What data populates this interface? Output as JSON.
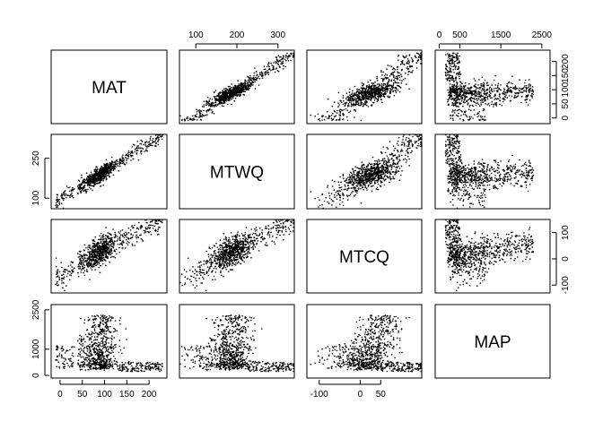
{
  "chart_data": {
    "type": "scatter",
    "title": "",
    "variables": [
      "MAT",
      "MTWQ",
      "MTCQ",
      "MAP"
    ],
    "ranges": {
      "MAT": [
        -20,
        240
      ],
      "MTWQ": [
        60,
        340
      ],
      "MTCQ": [
        -130,
        150
      ],
      "MAP": [
        -100,
        2700
      ]
    },
    "axes": {
      "top": [
        {
          "column": "MTWQ",
          "ticks": [
            100,
            200,
            300
          ],
          "labels": [
            "100",
            "200",
            "300"
          ]
        },
        {
          "column": "MAP",
          "ticks": [
            0,
            500,
            1500,
            2500
          ],
          "labels": [
            "0",
            "500",
            "1500",
            "2500"
          ]
        }
      ],
      "right": [
        {
          "row": "MAT",
          "ticks": [
            0,
            50,
            100,
            150,
            200
          ],
          "labels": [
            "0",
            "50",
            "100",
            "150",
            "200"
          ]
        },
        {
          "row": "MTCQ",
          "ticks": [
            -100,
            0,
            100
          ],
          "labels": [
            "-100",
            "0",
            "100"
          ]
        }
      ],
      "left": [
        {
          "row": "MTWQ",
          "ticks": [
            100,
            250
          ],
          "labels": [
            "100",
            "250"
          ]
        },
        {
          "row": "MAP",
          "ticks": [
            0,
            1000,
            2500
          ],
          "labels": [
            "0",
            "1000",
            "2500"
          ]
        }
      ],
      "bottom": [
        {
          "column": "MAT",
          "ticks": [
            0,
            50,
            100,
            150,
            200
          ],
          "labels": [
            "0",
            "50",
            "100",
            "150",
            "200"
          ]
        },
        {
          "column": "MTCQ",
          "ticks": [
            -100,
            0,
            50
          ],
          "labels": [
            "-100",
            "0",
            "50"
          ]
        }
      ]
    },
    "n_points": 900,
    "note": "Scatterplot matrix of MAT, MTWQ, MTCQ and MAP; each observation is one point per off-diagonal panel."
  }
}
